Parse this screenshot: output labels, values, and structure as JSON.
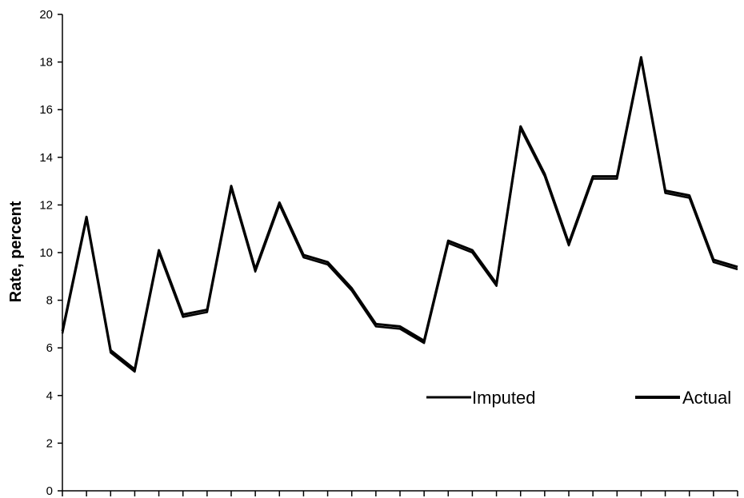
{
  "chart_data": {
    "type": "line",
    "title": "",
    "xlabel": "",
    "ylabel": "Rate, percent",
    "ylim": [
      0,
      20
    ],
    "yticks": [
      "0",
      "2",
      "4",
      "6",
      "8",
      "10",
      "12",
      "14",
      "16",
      "18",
      "20"
    ],
    "x_tick_count": 29,
    "grid": false,
    "legend_position": "bottom-right",
    "x": [
      0,
      1,
      2,
      3,
      4,
      5,
      6,
      7,
      8,
      9,
      10,
      11,
      12,
      13,
      14,
      15,
      16,
      17,
      18,
      19,
      20,
      21,
      22,
      23,
      24,
      25,
      26,
      27,
      28
    ],
    "series": [
      {
        "name": "Imputed",
        "color": "#000000",
        "values": [
          6.6,
          11.4,
          5.8,
          5.0,
          10.0,
          7.3,
          7.5,
          12.7,
          9.2,
          12.0,
          9.8,
          9.5,
          8.4,
          6.9,
          6.8,
          6.2,
          10.4,
          10.0,
          8.6,
          15.2,
          13.2,
          10.3,
          13.1,
          13.1,
          18.1,
          12.5,
          12.3,
          9.6,
          9.3
        ]
      },
      {
        "name": "Actual",
        "color": "#000000",
        "values": [
          6.7,
          11.5,
          5.9,
          5.1,
          10.1,
          7.4,
          7.6,
          12.8,
          9.3,
          12.1,
          9.9,
          9.6,
          8.5,
          7.0,
          6.9,
          6.3,
          10.5,
          10.1,
          8.7,
          15.3,
          13.3,
          10.4,
          13.2,
          13.2,
          18.2,
          12.6,
          12.4,
          9.7,
          9.4
        ]
      }
    ]
  }
}
